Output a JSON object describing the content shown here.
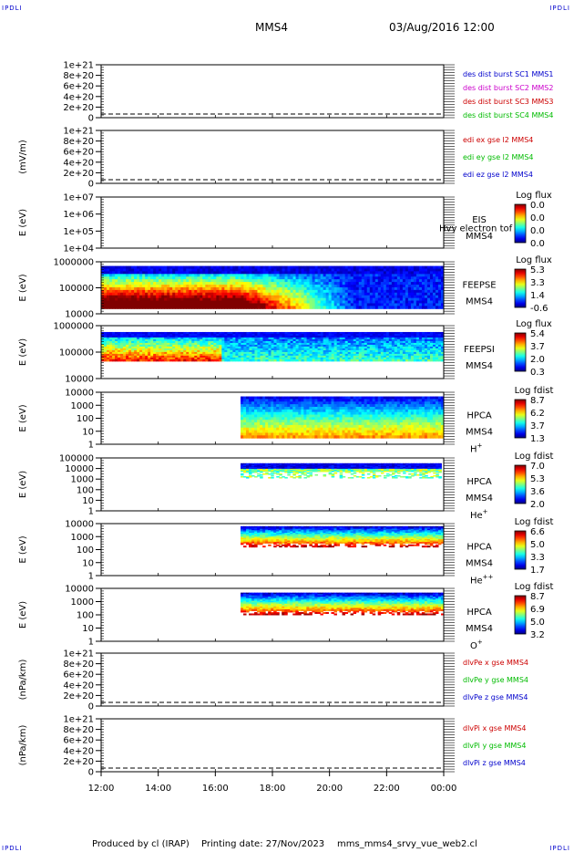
{
  "header": {
    "corner_left": "IPDLI",
    "corner_right": "IPDLI",
    "spacecraft": "MMS4",
    "datetime": "03/Aug/2016 12:00"
  },
  "footer": {
    "produced_by": "Produced by cl (IRAP)",
    "printing_date": "Printing date: 27/Nov/2023",
    "script_name": "mms_mms4_srvy_vue_web2.cl",
    "corner_left": "IPDLI",
    "corner_right": "IPDLI"
  },
  "colors": {
    "blue": "#0000cc",
    "magenta": "#cc00cc",
    "red": "#cc0000",
    "green": "#00bb00"
  },
  "chart_data": {
    "type": "heatmap",
    "x_ticks": [
      "12:00",
      "14:00",
      "16:00",
      "18:00",
      "20:00",
      "22:00",
      "00:00"
    ],
    "x_range": [
      "12:00",
      "00:00"
    ],
    "panels": [
      {
        "kind": "line",
        "ylabel": "",
        "y_ticks": [
          "1e+21",
          "8e+20",
          "6e+20",
          "4e+20",
          "2e+20",
          "0"
        ],
        "series": [],
        "legend": [
          {
            "text": "des dist burst SC1 MMS1",
            "color": "#0000cc"
          },
          {
            "text": "des dist burst SC2 MMS2",
            "color": "#cc00cc"
          },
          {
            "text": "des dist burst SC3 MMS3",
            "color": "#cc0000"
          },
          {
            "text": "des dist burst SC4 MMS4",
            "color": "#00bb00"
          }
        ]
      },
      {
        "kind": "line",
        "ylabel": "(mV/m)",
        "y_ticks": [
          "1e+21",
          "8e+20",
          "6e+20",
          "4e+20",
          "2e+20",
          "0"
        ],
        "series": [],
        "legend": [
          {
            "text": "edi ex gse l2 MMS4",
            "color": "#cc0000"
          },
          {
            "text": "edi ey gse l2 MMS4",
            "color": "#00bb00"
          },
          {
            "text": "edi ez gse l2 MMS4",
            "color": "#0000cc"
          }
        ]
      },
      {
        "kind": "spectrogram",
        "ylabel": "E (eV)",
        "y_ticks": [
          "1e+07",
          "1e+06",
          "1e+05",
          "1e+04"
        ],
        "instrument": "EIS",
        "instrument_extra": "Hvy electron tof",
        "spacecraft": "MMS4",
        "species": "",
        "species_sup": "",
        "colorbar_title": "Log flux",
        "colorbar_ticks": [
          "0.0",
          "0.0",
          "0.0",
          "0.0"
        ],
        "coverage": null
      },
      {
        "kind": "spectrogram",
        "ylabel": "E (eV)",
        "y_ticks": [
          "1000000",
          "100000",
          "10000"
        ],
        "instrument": "FEEPSE",
        "instrument_extra": "",
        "spacecraft": "MMS4",
        "species": "",
        "species_sup": "",
        "colorbar_title": "Log flux",
        "colorbar_ticks": [
          "5.3",
          "3.3",
          "1.4",
          "-0.6"
        ],
        "coverage": {
          "start": "12:00",
          "end": "00:00",
          "intensity": "high-early",
          "top_gap": 0.08,
          "bottom_gap": 0.1
        }
      },
      {
        "kind": "spectrogram",
        "ylabel": "E (eV)",
        "y_ticks": [
          "1000000",
          "100000",
          "10000"
        ],
        "instrument": "FEEPSI",
        "instrument_extra": "",
        "spacecraft": "MMS4",
        "species": "",
        "species_sup": "",
        "colorbar_title": "Log flux",
        "colorbar_ticks": [
          "5.4",
          "3.7",
          "2.0",
          "0.3"
        ],
        "coverage": {
          "start": "12:00",
          "end": "00:00",
          "intensity": "mid-early",
          "top_gap": 0.12,
          "bottom_gap": 0.33
        }
      },
      {
        "kind": "spectrogram",
        "ylabel": "E (eV)",
        "y_ticks": [
          "10000",
          "1000",
          "100",
          "10",
          "1"
        ],
        "instrument": "HPCA",
        "instrument_extra": "",
        "spacecraft": "MMS4",
        "species": "H",
        "species_sup": "+",
        "colorbar_title": "Log fdist",
        "colorbar_ticks": [
          "8.7",
          "6.2",
          "3.7",
          "1.3"
        ],
        "coverage": {
          "start": "16:53",
          "end": "00:00",
          "intensity": "top-dense",
          "top_gap": 0.08,
          "bottom_gap": 0.12
        }
      },
      {
        "kind": "spectrogram",
        "ylabel": "E (eV)",
        "y_ticks": [
          "100000",
          "10000",
          "1000",
          "100",
          "10",
          "1"
        ],
        "instrument": "HPCA",
        "instrument_extra": "",
        "spacecraft": "MMS4",
        "species": "He",
        "species_sup": "+",
        "colorbar_title": "Log fdist",
        "colorbar_ticks": [
          "7.0",
          "5.3",
          "3.6",
          "2.0"
        ],
        "coverage": {
          "start": "16:53",
          "end": "23:55",
          "intensity": "band-thin",
          "top_gap": 0.1,
          "bottom_gap": 0.62
        }
      },
      {
        "kind": "spectrogram",
        "ylabel": "E (eV)",
        "y_ticks": [
          "10000",
          "1000",
          "100",
          "10",
          "1"
        ],
        "instrument": "HPCA",
        "instrument_extra": "",
        "spacecraft": "MMS4",
        "species": "He",
        "species_sup": "++",
        "colorbar_title": "Log fdist",
        "colorbar_ticks": [
          "6.6",
          "5.0",
          "3.3",
          "1.7"
        ],
        "coverage": {
          "start": "16:53",
          "end": "00:00",
          "intensity": "band-mid",
          "top_gap": 0.05,
          "bottom_gap": 0.55
        }
      },
      {
        "kind": "spectrogram",
        "ylabel": "E (eV)",
        "y_ticks": [
          "10000",
          "1000",
          "100",
          "10",
          "1"
        ],
        "instrument": "HPCA",
        "instrument_extra": "",
        "spacecraft": "MMS4",
        "species": "O",
        "species_sup": "+",
        "colorbar_title": "Log fdist",
        "colorbar_ticks": [
          "8.7",
          "6.9",
          "5.0",
          "3.2"
        ],
        "coverage": {
          "start": "16:53",
          "end": "00:00",
          "intensity": "band-mid",
          "top_gap": 0.08,
          "bottom_gap": 0.5
        }
      },
      {
        "kind": "line",
        "ylabel": "(nPa/km)",
        "y_ticks": [
          "1e+21",
          "8e+20",
          "6e+20",
          "4e+20",
          "2e+20",
          "0"
        ],
        "series": [],
        "legend": [
          {
            "text": "dlvPe x gse MMS4",
            "color": "#cc0000"
          },
          {
            "text": "dlvPe y gse MMS4",
            "color": "#00bb00"
          },
          {
            "text": "dlvPe z gse MMS4",
            "color": "#0000cc"
          }
        ]
      },
      {
        "kind": "line",
        "ylabel": "(nPa/km)",
        "y_ticks": [
          "1e+21",
          "8e+20",
          "6e+20",
          "4e+20",
          "2e+20",
          "0"
        ],
        "series": [],
        "legend": [
          {
            "text": "dlvPi x gse MMS4",
            "color": "#cc0000"
          },
          {
            "text": "dlvPi y gse MMS4",
            "color": "#00bb00"
          },
          {
            "text": "dlvPi z gse MMS4",
            "color": "#0000cc"
          }
        ]
      }
    ]
  }
}
